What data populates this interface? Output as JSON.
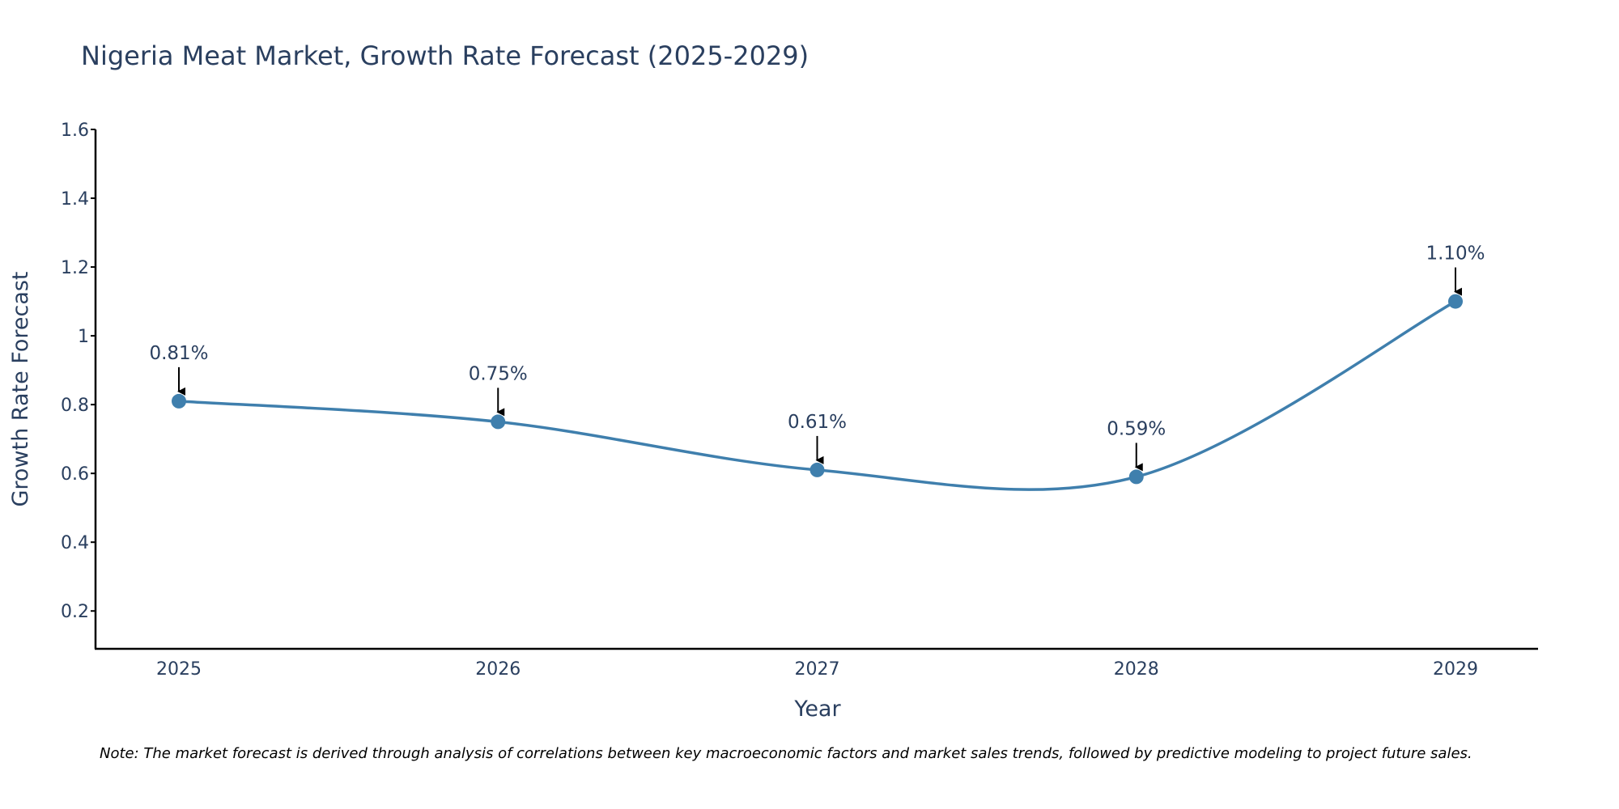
{
  "colors": {
    "line": "#3f7fad",
    "marker": "#3f7fad",
    "arrow": "#000000",
    "axis": "#000000",
    "text": "#2a3f5f"
  },
  "chart_data": {
    "type": "line",
    "title": "Nigeria Meat Market, Growth Rate Forecast (2025-2029)",
    "xlabel": "Year",
    "ylabel": "Growth Rate Forecast",
    "x": [
      "2025",
      "2026",
      "2027",
      "2028",
      "2029"
    ],
    "series": [
      {
        "name": "Growth Rate Forecast",
        "values": [
          0.81,
          0.75,
          0.61,
          0.59,
          1.1
        ]
      }
    ],
    "data_labels": [
      "0.81%",
      "0.75%",
      "0.61%",
      "0.59%",
      "1.10%"
    ],
    "ylim": [
      0.09,
      1.6
    ],
    "yticks": [
      0.2,
      0.4,
      0.6,
      0.8,
      1,
      1.2,
      1.4,
      1.6
    ],
    "ytick_labels": [
      "0.2",
      "0.4",
      "0.6",
      "0.8",
      "1",
      "1.2",
      "1.4",
      "1.6"
    ],
    "grid": false,
    "line_shape": "spline"
  },
  "note": "Note: The market forecast is derived through analysis of correlations between key macroeconomic factors and market sales trends, followed by predictive modeling to project future sales."
}
